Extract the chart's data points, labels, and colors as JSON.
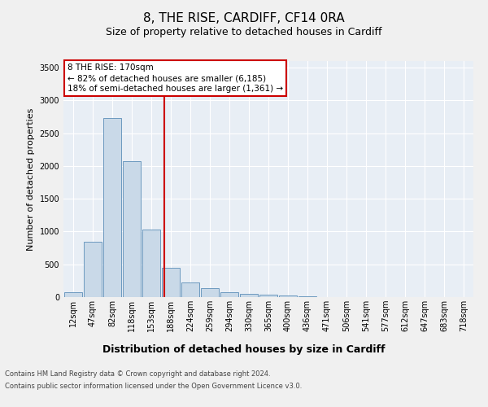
{
  "title": "8, THE RISE, CARDIFF, CF14 0RA",
  "subtitle": "Size of property relative to detached houses in Cardiff",
  "xlabel": "Distribution of detached houses by size in Cardiff",
  "ylabel": "Number of detached properties",
  "footer_line1": "Contains HM Land Registry data © Crown copyright and database right 2024.",
  "footer_line2": "Contains public sector information licensed under the Open Government Licence v3.0.",
  "bar_labels": [
    "12sqm",
    "47sqm",
    "82sqm",
    "118sqm",
    "153sqm",
    "188sqm",
    "224sqm",
    "259sqm",
    "294sqm",
    "330sqm",
    "365sqm",
    "400sqm",
    "436sqm",
    "471sqm",
    "506sqm",
    "541sqm",
    "577sqm",
    "612sqm",
    "647sqm",
    "683sqm",
    "718sqm"
  ],
  "bar_values": [
    75,
    850,
    2725,
    2075,
    1025,
    450,
    225,
    140,
    70,
    50,
    35,
    20,
    10,
    5,
    3,
    2,
    1,
    1,
    0,
    0,
    0
  ],
  "bar_color": "#c9d9e8",
  "bar_edge_color": "#5b8db8",
  "vline_x": 4.67,
  "vline_color": "#cc0000",
  "annotation_text": "8 THE RISE: 170sqm\n← 82% of detached houses are smaller (6,185)\n18% of semi-detached houses are larger (1,361) →",
  "annotation_box_color": "#cc0000",
  "ylim": [
    0,
    3600
  ],
  "yticks": [
    0,
    500,
    1000,
    1500,
    2000,
    2500,
    3000,
    3500
  ],
  "background_color": "#f0f0f0",
  "axes_background": "#e8eef5",
  "grid_color": "#ffffff",
  "title_fontsize": 11,
  "subtitle_fontsize": 9,
  "tick_fontsize": 7,
  "ylabel_fontsize": 8,
  "xlabel_fontsize": 9,
  "footer_fontsize": 6,
  "annotation_fontsize": 7.5
}
